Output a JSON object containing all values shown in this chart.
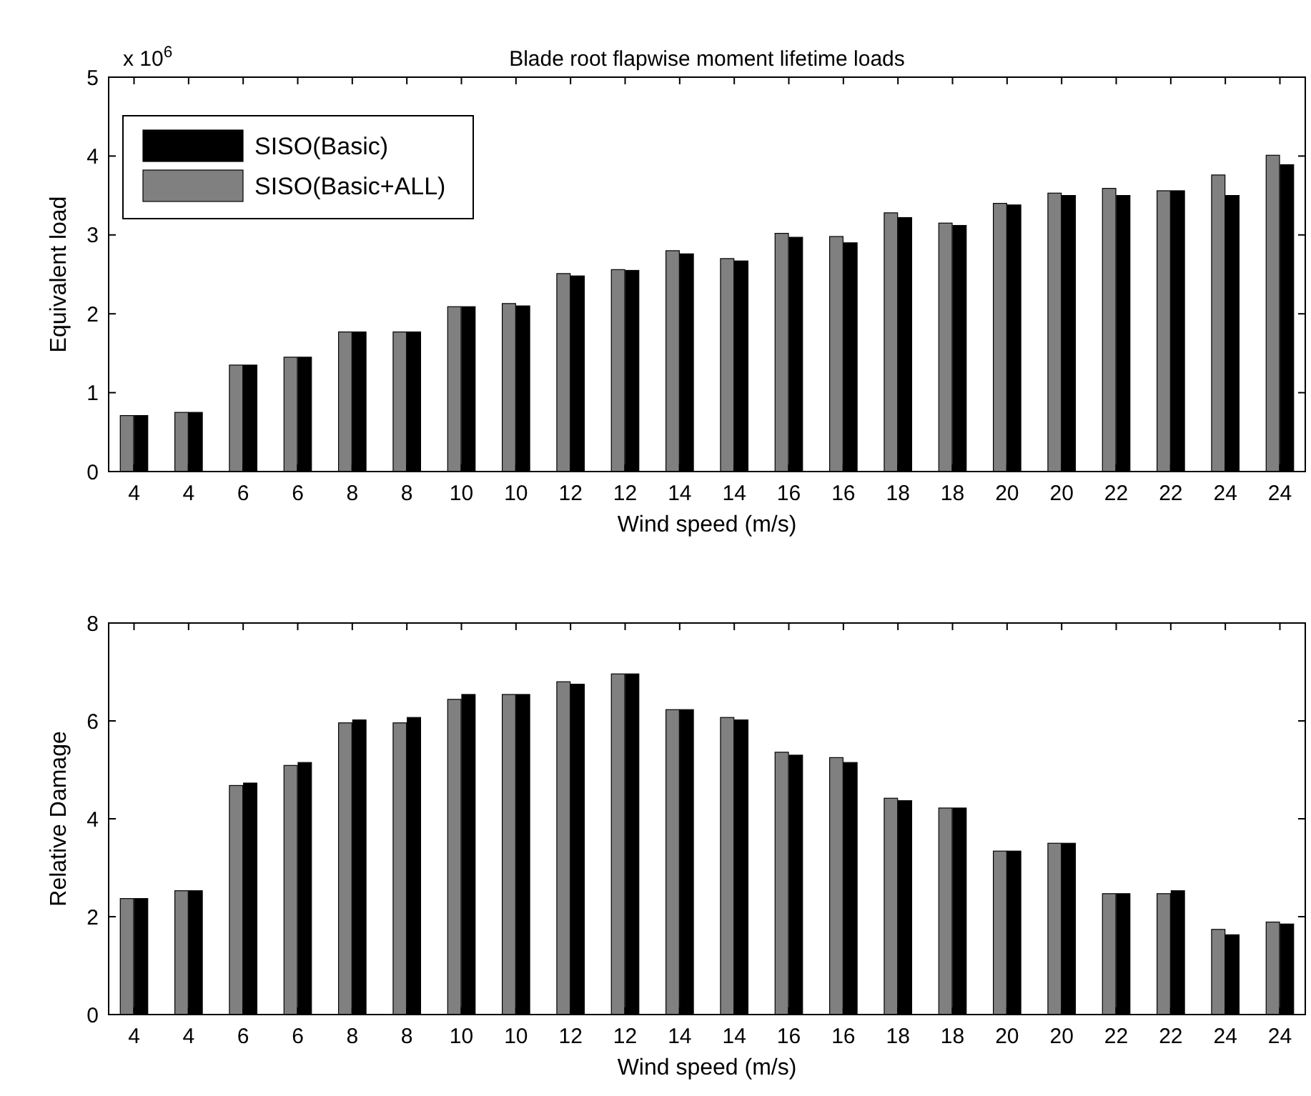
{
  "chart_data": [
    {
      "type": "bar",
      "title": "Blade root flapwise moment lifetime loads",
      "xlabel": "Wind speed (m/s)",
      "ylabel": "Equivalent load",
      "annotations": [
        "x 10$^{6}$"
      ],
      "categories": [
        "4",
        "4",
        "6",
        "6",
        "8",
        "8",
        "10",
        "10",
        "12",
        "12",
        "14",
        "14",
        "16",
        "16",
        "18",
        "18",
        "20",
        "20",
        "22",
        "22",
        "24",
        "24"
      ],
      "series": [
        {
          "name": "SISO(Basic+ALL)",
          "color": "#808080",
          "values": [
            0.71,
            0.75,
            1.35,
            1.45,
            1.77,
            1.77,
            2.09,
            2.13,
            2.51,
            2.56,
            2.8,
            2.7,
            3.02,
            2.98,
            3.28,
            3.15,
            3.4,
            3.53,
            3.59,
            3.56,
            3.76,
            4.01
          ]
        },
        {
          "name": "SISO(Basic)",
          "color": "#000000",
          "values": [
            0.71,
            0.75,
            1.35,
            1.45,
            1.77,
            1.77,
            2.09,
            2.1,
            2.48,
            2.55,
            2.76,
            2.67,
            2.97,
            2.9,
            3.22,
            3.12,
            3.38,
            3.5,
            3.5,
            3.56,
            3.5,
            3.89
          ]
        }
      ],
      "ylim": [
        0,
        5
      ],
      "yticks": [
        0,
        1,
        2,
        3,
        4,
        5
      ],
      "legend": "top left"
    },
    {
      "type": "bar",
      "xlabel": "Wind speed (m/s)",
      "ylabel": "Relative Damage",
      "categories": [
        "4",
        "4",
        "6",
        "6",
        "8",
        "8",
        "10",
        "10",
        "12",
        "12",
        "14",
        "14",
        "16",
        "16",
        "18",
        "18",
        "20",
        "20",
        "22",
        "22",
        "24",
        "24"
      ],
      "series": [
        {
          "color": "#808080",
          "values": [
            2.37,
            2.53,
            4.68,
            5.09,
            5.96,
            5.96,
            6.44,
            6.54,
            6.8,
            6.96,
            6.23,
            6.07,
            5.36,
            5.25,
            4.42,
            4.22,
            3.34,
            3.5,
            2.47,
            2.47,
            1.74,
            1.89
          ]
        },
        {
          "color": "#000000",
          "values": [
            2.37,
            2.53,
            4.73,
            5.15,
            6.02,
            6.07,
            6.54,
            6.54,
            6.75,
            6.96,
            6.23,
            6.02,
            5.3,
            5.15,
            4.37,
            4.22,
            3.34,
            3.5,
            2.47,
            2.53,
            1.63,
            1.85
          ]
        }
      ],
      "ylim": [
        0,
        8
      ],
      "yticks": [
        0,
        2,
        4,
        6,
        8
      ]
    }
  ]
}
